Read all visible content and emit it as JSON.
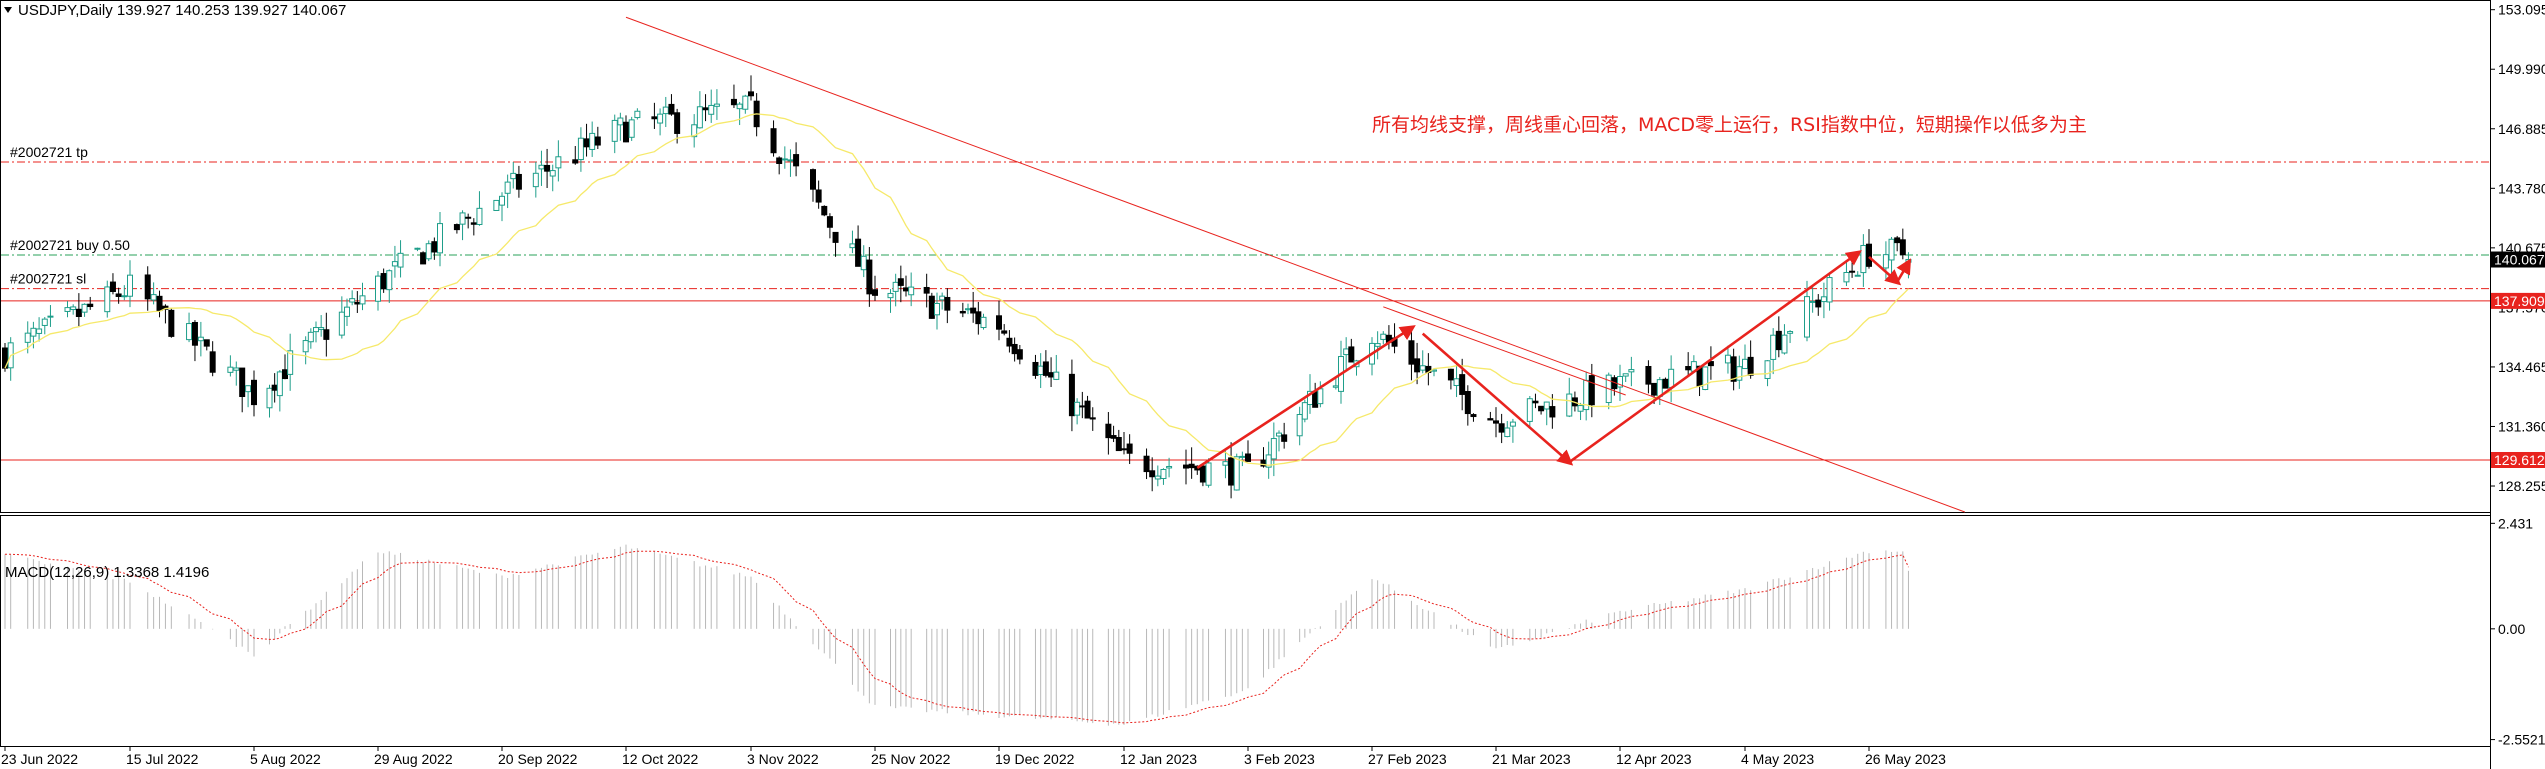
{
  "header": {
    "symbol_info": "USDJPY,Daily  139.927 140.253 139.927 140.067"
  },
  "macd_header": "MACD(12,26,9) 1.3368 1.4196",
  "annotation": "所有均线支撑，周线重心回落，MACD零上运行，RSI指数中位，短期操作以低多为主",
  "colors": {
    "bull": "#1e9e8a",
    "bear": "#000000",
    "ma": "#f6e96a",
    "resistance_line": "#e8231e",
    "order_line": "#e8231e",
    "buy_line": "#2aa05a",
    "macd_hist": "#b8b8b8",
    "macd_signal": "#e8231e",
    "price_badge": "#000000",
    "level_badge": "#e8231e"
  },
  "chart_data": {
    "type": "candlestick",
    "symbol": "USDJPY",
    "timeframe": "Daily",
    "price_axis_ticks": [
      153.095,
      149.99,
      146.885,
      143.78,
      140.675,
      137.57,
      134.465,
      131.36,
      128.255
    ],
    "price_axis_ticks_labels": [
      "153.095",
      "149.990",
      "146.885",
      "143.780",
      "140.675",
      "137.570",
      "134.465",
      "131.360",
      "128.255"
    ],
    "ylim": [
      126.9,
      153.6
    ],
    "current_price": 140.067,
    "current_price_label": "140.067",
    "horizontal_levels": [
      {
        "price": 137.909,
        "label": "137.909"
      },
      {
        "price": 129.612,
        "label": "129.612"
      }
    ],
    "order_lines": [
      {
        "price": 145.15,
        "label": "#2002721 tp",
        "kind": "tp"
      },
      {
        "price": 140.3,
        "label": "#2002721 buy 0.50",
        "kind": "buy"
      },
      {
        "price": 138.55,
        "label": "#2002721 sl",
        "kind": "sl"
      }
    ],
    "x_labels": [
      "23 Jun 2022",
      "15 Jul 2022",
      "5 Aug 2022",
      "29 Aug 2022",
      "20 Sep 2022",
      "12 Oct 2022",
      "3 Nov 2022",
      "25 Nov 2022",
      "19 Dec 2022",
      "12 Jan 2023",
      "3 Feb 2023",
      "27 Feb 2023",
      "21 Mar 2023",
      "12 Apr 2023",
      "4 May 2023",
      "26 May 2023"
    ],
    "trendline": {
      "from": {
        "date": "2022-10-12",
        "price": 152.7
      },
      "to": {
        "date": "2023-06-12",
        "price": 126.9
      }
    },
    "channel_line": {
      "from": {
        "date": "2023-03-01",
        "price": 137.6
      },
      "to": {
        "date": "2023-04-13",
        "price": 133.0
      }
    },
    "arrows": [
      {
        "from": {
          "date": "2023-01-25",
          "price": 129.2
        },
        "to": {
          "date": "2023-03-06",
          "price": 136.5
        }
      },
      {
        "from": {
          "date": "2023-03-08",
          "price": 136.2
        },
        "to": {
          "date": "2023-04-03",
          "price": 129.5
        }
      },
      {
        "from": {
          "date": "2023-04-03",
          "price": 129.5
        },
        "to": {
          "date": "2023-05-24",
          "price": 140.4
        }
      },
      {
        "from": {
          "date": "2023-05-26",
          "price": 140.2
        },
        "to": {
          "date": "2023-05-31",
          "price": 138.9
        }
      },
      {
        "from": {
          "date": "2023-05-31",
          "price": 138.9
        },
        "to": {
          "date": "2023-06-02",
          "price": 139.9
        }
      }
    ],
    "close_anchors": [
      [
        "23 Jun 2022",
        135.2
      ],
      [
        "15 Jul 2022",
        138.6
      ],
      [
        "5 Aug 2022",
        133.0
      ],
      [
        "29 Aug 2022",
        138.8
      ],
      [
        "20 Sep 2022",
        143.5
      ],
      [
        "12 Oct 2022",
        147.0
      ],
      [
        "3 Nov 2022",
        147.9
      ],
      [
        "25 Nov 2022",
        138.6
      ],
      [
        "19 Dec 2022",
        136.7
      ],
      [
        "12 Jan 2023",
        129.6
      ],
      [
        "3 Feb 2023",
        129.0
      ],
      [
        "27 Feb 2023",
        136.3
      ],
      [
        "21 Mar 2023",
        131.7
      ],
      [
        "12 Apr 2023",
        133.5
      ],
      [
        "4 May 2023",
        134.5
      ],
      [
        "26 May 2023",
        140.4
      ]
    ],
    "last_candle": {
      "open": 139.927,
      "high": 140.253,
      "low": 139.927,
      "close": 140.067
    },
    "macd": {
      "params": [
        12,
        26,
        9
      ],
      "main": 1.3368,
      "signal": 1.4196,
      "axis_ticks": [
        2.431,
        0.0,
        -2.5521
      ],
      "axis_ticks_labels": [
        "2.431",
        "0.00",
        "-2.5521"
      ],
      "ylim": [
        -2.7,
        2.6
      ],
      "anchors": [
        [
          "23 Jun 2022",
          1.7
        ],
        [
          "15 Jul 2022",
          1.1
        ],
        [
          "5 Aug 2022",
          -0.6
        ],
        [
          "29 Aug 2022",
          1.8
        ],
        [
          "20 Sep 2022",
          1.2
        ],
        [
          "12 Oct 2022",
          1.9
        ],
        [
          "3 Nov 2022",
          1.2
        ],
        [
          "25 Nov 2022",
          -1.8
        ],
        [
          "19 Dec 2022",
          -2.0
        ],
        [
          "12 Jan 2023",
          -2.2
        ],
        [
          "3 Feb 2023",
          -1.4
        ],
        [
          "27 Feb 2023",
          1.2
        ],
        [
          "21 Mar 2023",
          -0.5
        ],
        [
          "12 Apr 2023",
          0.4
        ],
        [
          "4 May 2023",
          0.9
        ],
        [
          "26 May 2023",
          1.8
        ]
      ]
    }
  }
}
